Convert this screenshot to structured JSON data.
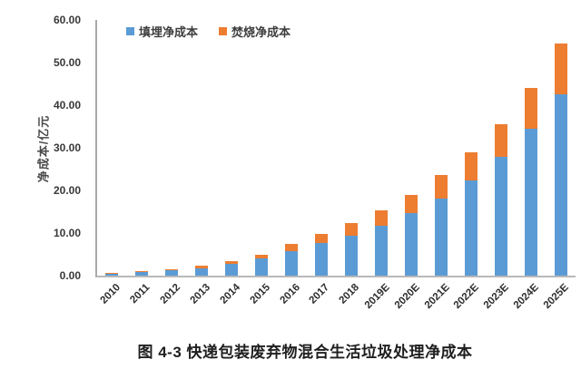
{
  "caption": "图 4-3 快递包装废弃物混合生活垃圾处理净成本",
  "colors": {
    "landfill_blue": "#5b9bd5",
    "incineration_orange": "#ed7d31",
    "axis_gray": "#a9a9a9",
    "text_dark": "#383838",
    "background": "#ffffff"
  },
  "chart_data": {
    "type": "bar",
    "stacked": true,
    "title": "",
    "ylabel": "净成本/亿元",
    "xlabel": "",
    "ylim": [
      0,
      60
    ],
    "ytick_step": 10,
    "ytick_labels": [
      "0.00",
      "10.00",
      "20.00",
      "30.00",
      "40.00",
      "50.00",
      "60.00"
    ],
    "grid": false,
    "legend_position": "top",
    "categories": [
      "2010",
      "2011",
      "2012",
      "2013",
      "2014",
      "2015",
      "2016",
      "2017",
      "2018",
      "2019E",
      "2020E",
      "2021E",
      "2022E",
      "2023E",
      "2024E",
      "2025E"
    ],
    "series": [
      {
        "name": "填埋净成本",
        "color": "#5b9bd5",
        "values": [
          0.5,
          0.8,
          1.2,
          1.8,
          2.8,
          4.0,
          5.7,
          7.6,
          9.4,
          11.7,
          14.6,
          18.0,
          22.3,
          27.9,
          34.4,
          42.6
        ]
      },
      {
        "name": "焚烧净成本",
        "color": "#ed7d31",
        "values": [
          0.1,
          0.2,
          0.3,
          0.5,
          0.7,
          1.0,
          1.7,
          2.2,
          2.9,
          3.7,
          4.4,
          5.6,
          6.7,
          7.7,
          9.7,
          11.9
        ]
      }
    ]
  }
}
